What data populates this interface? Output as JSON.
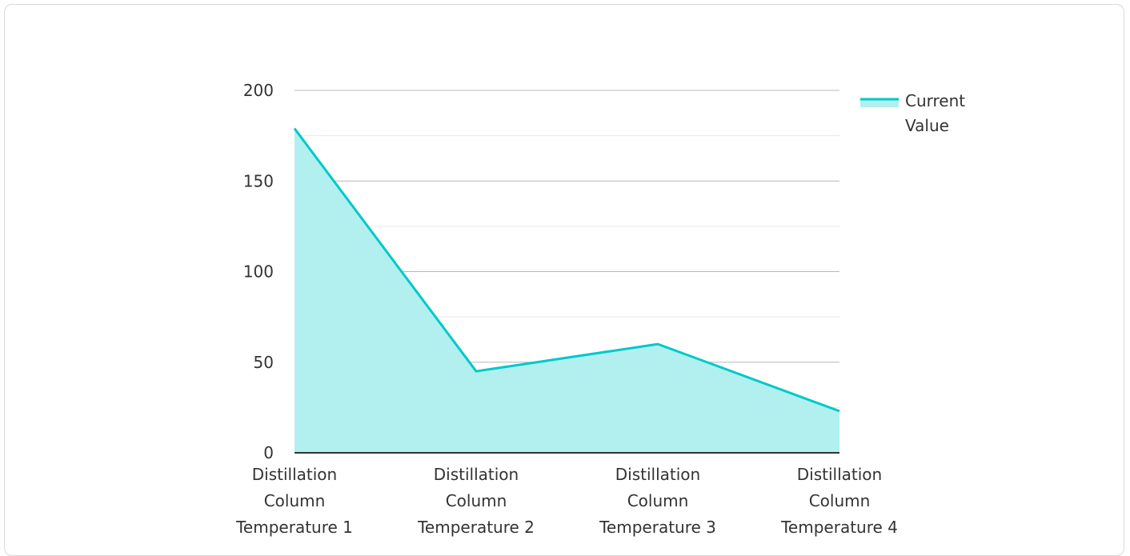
{
  "chart_data": {
    "type": "area",
    "categories": [
      "Distillation Column Temperature 1",
      "Distillation Column Temperature 2",
      "Distillation Column Temperature 3",
      "Distillation Column Temperature 4"
    ],
    "category_lines": [
      [
        "Distillation",
        "Column",
        "Temperature 1"
      ],
      [
        "Distillation",
        "Column",
        "Temperature 2"
      ],
      [
        "Distillation",
        "Column",
        "Temperature 3"
      ],
      [
        "Distillation",
        "Column",
        "Temperature 4"
      ]
    ],
    "series": [
      {
        "name": "Current Value",
        "name_lines": [
          "Current",
          "Value"
        ],
        "values": [
          179,
          45,
          60,
          23
        ],
        "color": "#00c9c9",
        "fill_color": "#b2efef"
      }
    ],
    "ylim": [
      0,
      200
    ],
    "yticks": [
      "0",
      "50",
      "100",
      "150",
      "200"
    ],
    "ytick_values": [
      0,
      50,
      100,
      150,
      200
    ],
    "minor_gridlines": [
      25,
      75,
      125,
      175
    ],
    "grid": true,
    "legend_position": "top-right"
  }
}
